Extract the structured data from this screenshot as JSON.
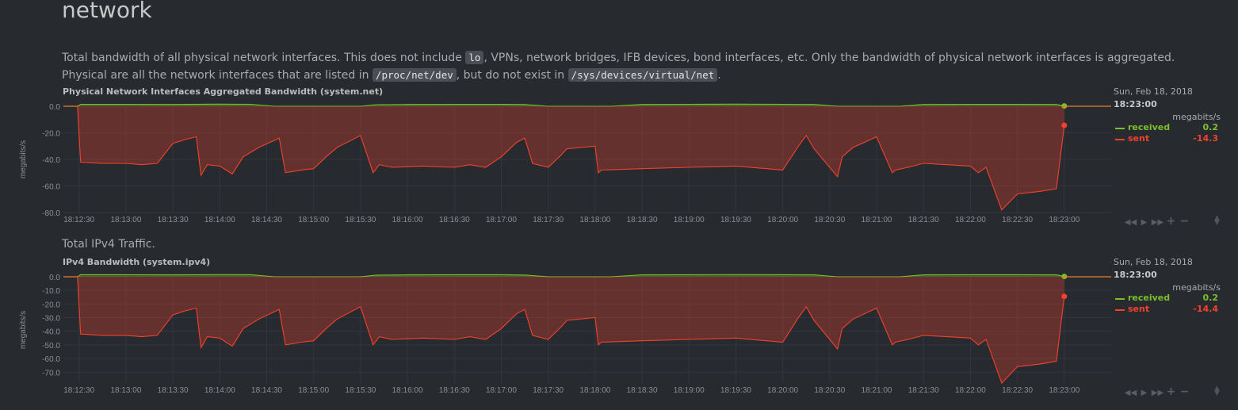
{
  "section": {
    "title": "network",
    "desc_1": "Total bandwidth of all physical network interfaces. This does not include ",
    "code_1": "lo",
    "desc_2": ", VPNs, network bridges, IFB devices, bond interfaces, etc. Only the bandwidth of physical network interfaces is aggregated. Physical are all the network interfaces that are listed in ",
    "code_2": "/proc/net/dev",
    "desc_3": ", but do not exist in ",
    "code_3": "/sys/devices/virtual/net",
    "desc_4": "."
  },
  "ipv4_desc": "Total IPv4 Traffic.",
  "colors": {
    "received": "#7cbf2a",
    "sent": "#f5402b",
    "bg": "#272b30"
  },
  "toolbox_icons": [
    "rewind-icon",
    "play-icon",
    "fast-forward-icon",
    "zoom-in-icon",
    "zoom-out-icon"
  ],
  "chart_data": [
    {
      "type": "area",
      "title": "Physical Network Interfaces Aggregated Bandwidth (system.net)",
      "ylabel": "megabits/s",
      "units": "megabits/s",
      "ylim": [
        -80,
        0
      ],
      "yticks": [
        "0.0",
        "-20.0",
        "-40.0",
        "-60.0",
        "-80.0"
      ],
      "xlim": [
        "18:12:20",
        "18:23:30"
      ],
      "xticks": [
        "18:12:30",
        "18:13:00",
        "18:13:30",
        "18:14:00",
        "18:14:30",
        "18:15:00",
        "18:15:30",
        "18:16:00",
        "18:16:30",
        "18:17:00",
        "18:17:30",
        "18:18:00",
        "18:18:30",
        "18:19:00",
        "18:19:30",
        "18:20:00",
        "18:20:30",
        "18:21:00",
        "18:21:30",
        "18:22:00",
        "18:22:30",
        "18:23:00"
      ],
      "legend_date": "Sun, Feb 18, 2018",
      "legend_time": "18:23:00",
      "grid": true,
      "series": [
        {
          "name": "received",
          "current": "0.2",
          "x": [
            "18:12:29",
            "18:12:31",
            "18:13:00",
            "18:13:30",
            "18:14:00",
            "18:14:20",
            "18:14:35",
            "18:14:50",
            "18:15:10",
            "18:15:30",
            "18:15:40",
            "18:16:00",
            "18:16:30",
            "18:17:00",
            "18:17:15",
            "18:17:30",
            "18:17:50",
            "18:18:10",
            "18:18:30",
            "18:19:00",
            "18:19:30",
            "18:20:00",
            "18:20:20",
            "18:20:35",
            "18:21:00",
            "18:21:15",
            "18:21:30",
            "18:22:00",
            "18:22:30",
            "18:22:55",
            "18:23:00"
          ],
          "values": [
            0,
            1.5,
            1.5,
            1.4,
            1.6,
            1.5,
            0,
            0,
            0,
            0,
            1.2,
            1.4,
            1.5,
            1.5,
            1.3,
            0,
            0,
            0,
            1.4,
            1.5,
            1.6,
            1.5,
            1.4,
            0,
            0,
            0,
            1.4,
            1.5,
            1.5,
            1.4,
            0.2
          ]
        },
        {
          "name": "sent",
          "current": "-14.3",
          "x": [
            "18:12:29",
            "18:12:31",
            "18:12:45",
            "18:13:00",
            "18:13:10",
            "18:13:20",
            "18:13:30",
            "18:13:38",
            "18:13:45",
            "18:13:48",
            "18:13:52",
            "18:14:00",
            "18:14:08",
            "18:14:15",
            "18:14:25",
            "18:14:38",
            "18:14:42",
            "18:14:52",
            "18:15:00",
            "18:15:08",
            "18:15:15",
            "18:15:30",
            "18:15:38",
            "18:15:42",
            "18:15:50",
            "18:16:10",
            "18:16:30",
            "18:16:40",
            "18:16:50",
            "18:17:00",
            "18:17:10",
            "18:17:15",
            "18:17:20",
            "18:17:30",
            "18:17:38",
            "18:17:42",
            "18:18:00",
            "18:18:02",
            "18:18:04",
            "18:18:30",
            "18:19:00",
            "18:19:30",
            "18:20:00",
            "18:20:10",
            "18:20:15",
            "18:20:20",
            "18:20:35",
            "18:20:38",
            "18:20:45",
            "18:21:00",
            "18:21:10",
            "18:21:12",
            "18:21:20",
            "18:21:30",
            "18:21:45",
            "18:22:00",
            "18:22:05",
            "18:22:10",
            "18:22:20",
            "18:22:30",
            "18:22:45",
            "18:22:55",
            "18:23:00"
          ],
          "values": [
            0,
            -42,
            -43,
            -43,
            -44,
            -43,
            -28,
            -25,
            -23,
            -52,
            -44,
            -45,
            -51,
            -38,
            -31,
            -24,
            -50,
            -48,
            -47,
            -38,
            -31,
            -22,
            -50,
            -44,
            -46,
            -45,
            -46,
            -44,
            -46,
            -38,
            -27,
            -24,
            -43,
            -46,
            -37,
            -32,
            -30,
            -50,
            -48,
            -47,
            -46,
            -45,
            -48,
            -30,
            -22,
            -32,
            -53,
            -38,
            -31,
            -23,
            -50,
            -48,
            -46,
            -43,
            -44,
            -45,
            -50,
            -46,
            -78,
            -66,
            -64,
            -62,
            -14.3
          ]
        }
      ]
    },
    {
      "type": "area",
      "title": "IPv4 Bandwidth (system.ipv4)",
      "ylabel": "megabits/s",
      "units": "megabits/s",
      "ylim": [
        -78,
        0
      ],
      "yticks": [
        "0.0",
        "-10.0",
        "-20.0",
        "-30.0",
        "-40.0",
        "-50.0",
        "-60.0",
        "-70.0"
      ],
      "xlim": [
        "18:12:20",
        "18:23:30"
      ],
      "xticks": [
        "18:12:30",
        "18:13:00",
        "18:13:30",
        "18:14:00",
        "18:14:30",
        "18:15:00",
        "18:15:30",
        "18:16:00",
        "18:16:30",
        "18:17:00",
        "18:17:30",
        "18:18:00",
        "18:18:30",
        "18:19:00",
        "18:19:30",
        "18:20:00",
        "18:20:30",
        "18:21:00",
        "18:21:30",
        "18:22:00",
        "18:22:30",
        "18:23:00"
      ],
      "legend_date": "Sun, Feb 18, 2018",
      "legend_time": "18:23:00",
      "grid": true,
      "series": [
        {
          "name": "received",
          "current": "0.2",
          "x": [
            "18:12:29",
            "18:12:31",
            "18:13:00",
            "18:13:30",
            "18:14:00",
            "18:14:20",
            "18:14:35",
            "18:14:50",
            "18:15:10",
            "18:15:30",
            "18:15:40",
            "18:16:00",
            "18:16:30",
            "18:17:00",
            "18:17:15",
            "18:17:30",
            "18:17:50",
            "18:18:10",
            "18:18:30",
            "18:19:00",
            "18:19:30",
            "18:20:00",
            "18:20:20",
            "18:20:35",
            "18:21:00",
            "18:21:15",
            "18:21:30",
            "18:22:00",
            "18:22:30",
            "18:22:55",
            "18:23:00"
          ],
          "values": [
            0,
            1.5,
            1.5,
            1.4,
            1.6,
            1.5,
            0,
            0,
            0,
            0,
            1.2,
            1.4,
            1.5,
            1.5,
            1.3,
            0,
            0,
            0,
            1.4,
            1.5,
            1.6,
            1.5,
            1.4,
            0,
            0,
            0,
            1.4,
            1.5,
            1.5,
            1.4,
            0.2
          ]
        },
        {
          "name": "sent",
          "current": "-14.4",
          "x": [
            "18:12:29",
            "18:12:31",
            "18:12:45",
            "18:13:00",
            "18:13:10",
            "18:13:20",
            "18:13:30",
            "18:13:38",
            "18:13:45",
            "18:13:48",
            "18:13:52",
            "18:14:00",
            "18:14:08",
            "18:14:15",
            "18:14:25",
            "18:14:38",
            "18:14:42",
            "18:14:52",
            "18:15:00",
            "18:15:08",
            "18:15:15",
            "18:15:30",
            "18:15:38",
            "18:15:42",
            "18:15:50",
            "18:16:10",
            "18:16:30",
            "18:16:40",
            "18:16:50",
            "18:17:00",
            "18:17:10",
            "18:17:15",
            "18:17:20",
            "18:17:30",
            "18:17:38",
            "18:17:42",
            "18:18:00",
            "18:18:02",
            "18:18:04",
            "18:18:30",
            "18:19:00",
            "18:19:30",
            "18:20:00",
            "18:20:10",
            "18:20:15",
            "18:20:20",
            "18:20:35",
            "18:20:38",
            "18:20:45",
            "18:21:00",
            "18:21:10",
            "18:21:12",
            "18:21:20",
            "18:21:30",
            "18:21:45",
            "18:22:00",
            "18:22:05",
            "18:22:10",
            "18:22:20",
            "18:22:30",
            "18:22:45",
            "18:22:55",
            "18:23:00"
          ],
          "values": [
            0,
            -42,
            -43,
            -43,
            -44,
            -43,
            -28,
            -25,
            -23,
            -52,
            -44,
            -45,
            -51,
            -38,
            -31,
            -24,
            -50,
            -48,
            -47,
            -38,
            -31,
            -22,
            -50,
            -44,
            -46,
            -45,
            -46,
            -44,
            -46,
            -38,
            -27,
            -24,
            -43,
            -46,
            -37,
            -32,
            -30,
            -50,
            -48,
            -47,
            -46,
            -45,
            -48,
            -30,
            -22,
            -32,
            -53,
            -38,
            -31,
            -23,
            -50,
            -48,
            -46,
            -43,
            -44,
            -45,
            -50,
            -46,
            -78,
            -66,
            -64,
            -62,
            -14.4
          ]
        }
      ]
    }
  ]
}
